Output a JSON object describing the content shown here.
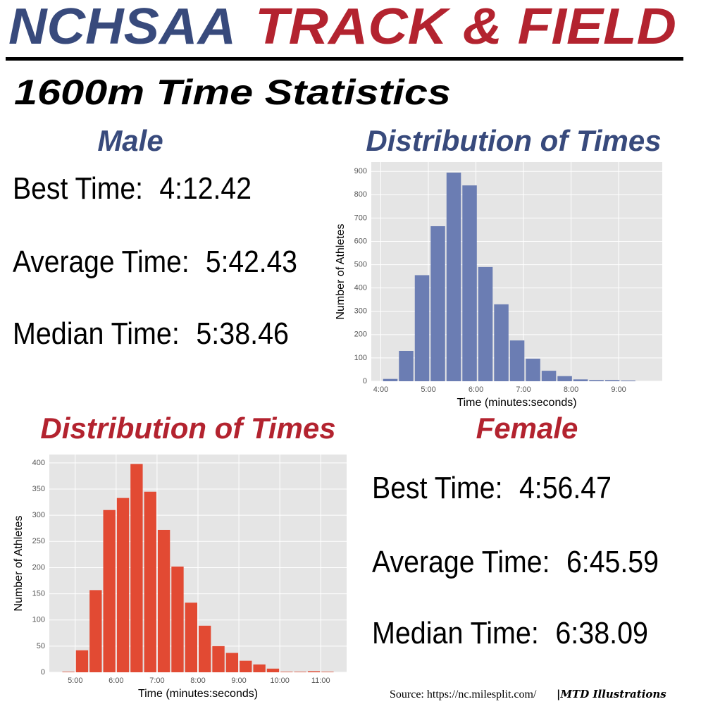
{
  "header": {
    "org": "NCHSAA",
    "sport": "TRACK & FIELD",
    "subtitle": "1600m Time Statistics"
  },
  "male": {
    "heading": "Male",
    "stats": [
      {
        "label": "Best Time:",
        "value": "4:12.42"
      },
      {
        "label": "Average Time:",
        "value": "5:42.43"
      },
      {
        "label": "Median Time:",
        "value": "5:38.46"
      }
    ]
  },
  "female": {
    "heading": "Female",
    "stats": [
      {
        "label": "Best Time:",
        "value": "4:56.47"
      },
      {
        "label": "Average Time:",
        "value": "6:45.59"
      },
      {
        "label": "Median Time:",
        "value": "6:38.09"
      }
    ]
  },
  "footer": {
    "source": "Source: https://nc.milesplit.com/",
    "credit": "|MTD Illustrations"
  },
  "chart_data": [
    {
      "type": "histogram",
      "title": "Distribution of Times",
      "title_color": "#384a7c",
      "x_label": "Time (minutes:seconds)",
      "y_label": "Number of Athletes",
      "bins": [
        242,
        262,
        282,
        302,
        322,
        342,
        362,
        382,
        402,
        422,
        442,
        462,
        482,
        502,
        522,
        542,
        562
      ],
      "values": [
        10,
        130,
        455,
        665,
        895,
        840,
        490,
        330,
        175,
        97,
        45,
        22,
        8,
        5,
        5,
        3
      ],
      "color": "#6b7db3",
      "xlim": [
        228,
        595
      ],
      "ylim": [
        0,
        940
      ],
      "xticks": [
        {
          "value": 240,
          "label": "4:00"
        },
        {
          "value": 300,
          "label": "5:00"
        },
        {
          "value": 360,
          "label": "6:00"
        },
        {
          "value": 420,
          "label": "7:00"
        },
        {
          "value": 480,
          "label": "8:00"
        },
        {
          "value": 540,
          "label": "9:00"
        }
      ],
      "yticks": [
        0,
        100,
        200,
        300,
        400,
        500,
        600,
        700,
        800,
        900
      ],
      "grid": true
    },
    {
      "type": "histogram",
      "title": "Distribution of Times",
      "title_color": "#b3232f",
      "x_label": "Time (minutes:seconds)",
      "y_label": "Number of Athletes",
      "bins": [
        280,
        300,
        320,
        340,
        360,
        380,
        400,
        420,
        440,
        460,
        480,
        500,
        520,
        540,
        560,
        580,
        600,
        620,
        640,
        660,
        680
      ],
      "values": [
        1,
        42,
        157,
        310,
        333,
        398,
        345,
        272,
        202,
        133,
        89,
        50,
        37,
        22,
        15,
        7,
        1,
        1,
        2,
        1
      ],
      "color": "#e24a33",
      "xlim": [
        262,
        698
      ],
      "ylim": [
        0,
        416
      ],
      "xticks": [
        {
          "value": 300,
          "label": "5:00"
        },
        {
          "value": 360,
          "label": "6:00"
        },
        {
          "value": 420,
          "label": "7:00"
        },
        {
          "value": 480,
          "label": "8:00"
        },
        {
          "value": 540,
          "label": "9:00"
        },
        {
          "value": 600,
          "label": "10:00"
        },
        {
          "value": 660,
          "label": "11:00"
        }
      ],
      "yticks": [
        0,
        50,
        100,
        150,
        200,
        250,
        300,
        350,
        400
      ],
      "grid": true
    }
  ]
}
